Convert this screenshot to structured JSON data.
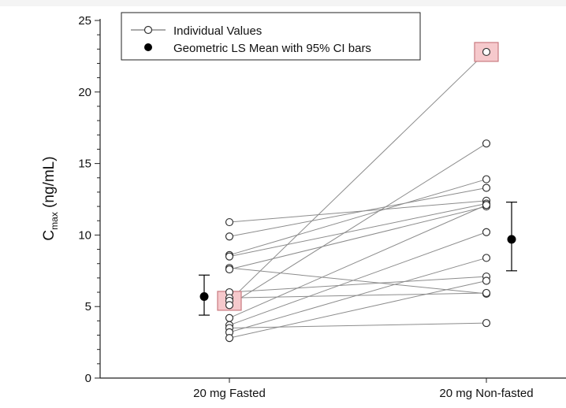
{
  "chart_data": {
    "type": "scatter",
    "categories": [
      "20 mg Fasted",
      "20 mg Non-fasted"
    ],
    "ylabel": {
      "main": "C",
      "subscript": "max",
      "rest": " (ng/mL)"
    },
    "ylim": [
      0,
      25
    ],
    "yticks": [
      "0",
      "5",
      "10",
      "15",
      "20",
      "25"
    ],
    "grid": false,
    "legend_position": "top-left",
    "legend": {
      "individual": "Individual Values",
      "mean": "Geometric LS Mean with 95% CI bars"
    },
    "individual_pairs": [
      [
        10.9,
        12.4
      ],
      [
        9.9,
        13.3
      ],
      [
        8.6,
        13.9
      ],
      [
        8.5,
        12.2
      ],
      [
        7.7,
        5.9
      ],
      [
        7.6,
        12.0
      ],
      [
        6.0,
        7.1
      ],
      [
        5.6,
        5.95
      ],
      [
        5.4,
        22.8
      ],
      [
        5.1,
        16.4
      ],
      [
        4.2,
        12.1
      ],
      [
        3.7,
        10.2
      ],
      [
        3.5,
        3.85
      ],
      [
        3.2,
        8.4
      ],
      [
        2.8,
        6.8
      ]
    ],
    "highlighted_subject_index": 8,
    "geometric_ls_mean": [
      {
        "category": "20 mg Fasted",
        "mean": 5.7,
        "ci": [
          4.4,
          7.2
        ]
      },
      {
        "category": "20 mg Non-fasted",
        "mean": 9.7,
        "ci": [
          7.5,
          12.3
        ]
      }
    ],
    "colors": {
      "line": "#8c8c8c",
      "marker_edge": "#333333",
      "highlight_fill": "#f6c9cc",
      "highlight_edge": "#c97a80",
      "mean": "#000000"
    }
  }
}
